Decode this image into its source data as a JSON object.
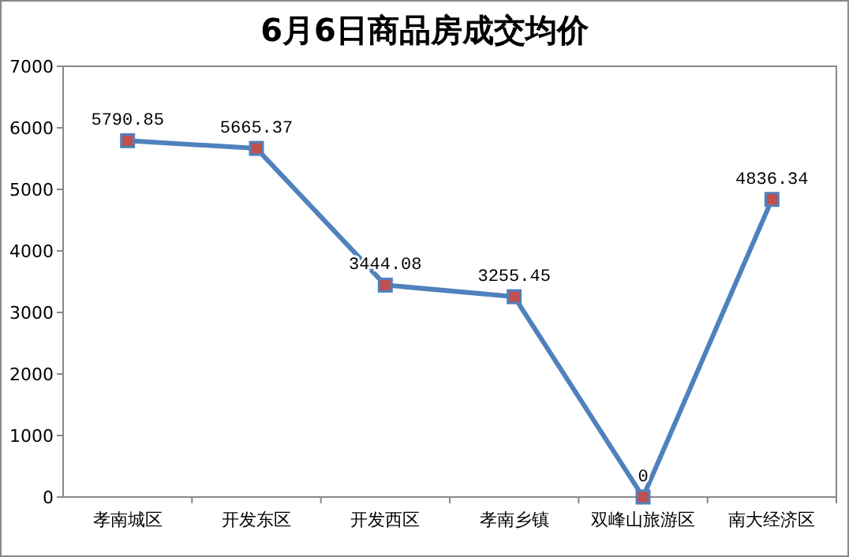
{
  "chart_data": {
    "type": "line",
    "title": "6月6日商品房成交均价",
    "categories": [
      "孝南城区",
      "开发东区",
      "开发西区",
      "孝南乡镇",
      "双峰山旅游区",
      "南大经济区"
    ],
    "series": [
      {
        "color": "#4f81bd",
        "colors": [
          "#c0504d",
          "#c0504d",
          "#c0504d",
          "#c0504d",
          "#c0504d",
          "#c0504d"
        ],
        "values": [
          5790.85,
          5665.37,
          3444.08,
          3255.45,
          0,
          4836.34
        ]
      }
    ],
    "ylim": [
      0,
      7000
    ],
    "yticks": [
      0,
      1000,
      2000,
      3000,
      4000,
      5000,
      6000,
      7000
    ],
    "marker": "square",
    "line_style": "solid",
    "data_labels": true
  }
}
